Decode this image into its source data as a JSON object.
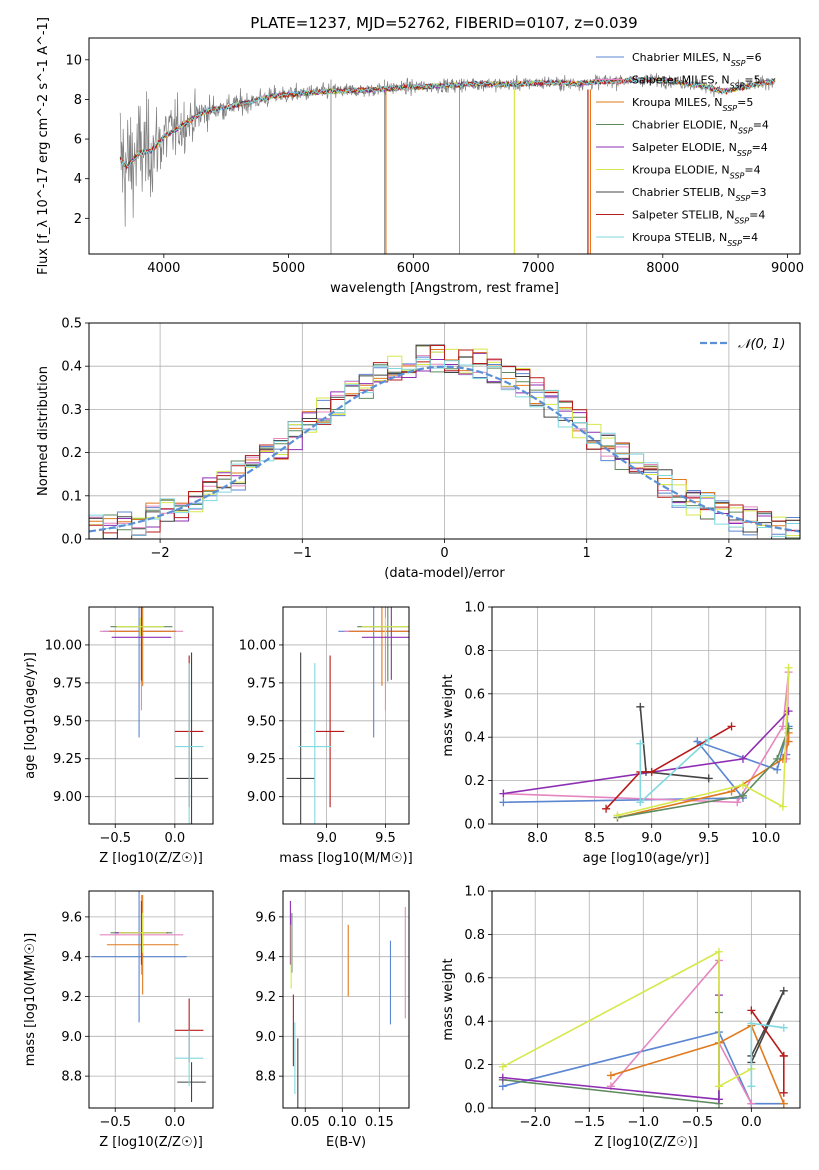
{
  "palette": {
    "Chabrier MILES": "#5b86d1",
    "Salpeter MILES": "#e586c0",
    "Kroupa MILES": "#e07a1d",
    "Chabrier ELODIE": "#5f8a5f",
    "Salpeter ELODIE": "#8e2fb3",
    "Kroupa ELODIE": "#d6e84a",
    "Chabrier STELIB": "#444444",
    "Salpeter STELIB": "#b81b1b",
    "Kroupa STELIB": "#80d8e0",
    "data": "#808080",
    "normal": "#5b8fd6",
    "grid": "#b0b0b0"
  },
  "chart_data": [
    {
      "id": "spectrum",
      "type": "line",
      "title": "PLATE=1237, MJD=52762, FIBERID=0107, z=0.039",
      "xlabel": "wavelength [Angstrom, rest frame]",
      "ylabel": "Flux [f_λ 10^-17 erg cm^-2 s^-1 A^-1]",
      "xlim": [
        3400,
        9100
      ],
      "ylim": [
        0.2,
        11.1
      ],
      "xticks": [
        4000,
        5000,
        6000,
        7000,
        8000,
        9000
      ],
      "yticks": [
        2,
        4,
        6,
        8,
        10
      ],
      "grid": false,
      "legend_position": "top-right",
      "legend": [
        {
          "name": "Chabrier MILES",
          "nssp": "6"
        },
        {
          "name": "Salpeter MILES",
          "nssp": "5"
        },
        {
          "name": "Kroupa MILES",
          "nssp": "5"
        },
        {
          "name": "Chabrier ELODIE",
          "nssp": "4"
        },
        {
          "name": "Salpeter ELODIE",
          "nssp": "4"
        },
        {
          "name": "Kroupa ELODIE",
          "nssp": "4"
        },
        {
          "name": "Chabrier STELIB",
          "nssp": "3"
        },
        {
          "name": "Salpeter STELIB",
          "nssp": "4"
        },
        {
          "name": "Kroupa STELIB",
          "nssp": "4"
        }
      ],
      "data_curve": {
        "x": [
          3650,
          3700,
          3800,
          3900,
          4000,
          4100,
          4200,
          4300,
          4400,
          4500,
          4700,
          4900,
          5100,
          5300,
          5500,
          5700,
          5900,
          6100,
          6300,
          6500,
          6700,
          6900,
          7100,
          7300,
          7500,
          7700,
          7900,
          8100,
          8300,
          8500,
          8700,
          8900
        ],
        "y": [
          5.0,
          4.6,
          5.3,
          5.4,
          6.1,
          6.5,
          6.9,
          7.3,
          7.5,
          7.6,
          7.9,
          8.2,
          8.3,
          8.4,
          8.45,
          8.5,
          8.6,
          8.65,
          8.7,
          8.8,
          8.75,
          8.8,
          8.85,
          8.8,
          8.9,
          8.95,
          9.0,
          8.9,
          8.7,
          8.4,
          8.7,
          8.95
        ]
      },
      "noise_amplitude": [
        4.5,
        4.0,
        3.6,
        3.0,
        2.4,
        1.9,
        1.5,
        1.2,
        0.9,
        0.8,
        0.7,
        0.6,
        0.55,
        0.5,
        0.5,
        0.45,
        0.45,
        0.45,
        0.45,
        0.45,
        0.45,
        0.45,
        0.45,
        0.45,
        0.45,
        0.4,
        0.4,
        0.4,
        0.4,
        0.4,
        0.4,
        0.4
      ]
    },
    {
      "id": "residuals",
      "type": "histogram",
      "xlabel": "(data-model)/error",
      "ylabel": "Normed distribution",
      "xlim": [
        -2.5,
        2.5
      ],
      "ylim": [
        0,
        0.5
      ],
      "xticks": [
        -2,
        -1,
        0,
        1,
        2
      ],
      "yticks": [
        0.0,
        0.1,
        0.2,
        0.3,
        0.4,
        0.5
      ],
      "grid": true,
      "legend_position": "top-right",
      "legend": [
        {
          "name": "𝒩(0, 1)"
        }
      ],
      "bin_width": 0.1
    },
    {
      "id": "age-vs-Z",
      "type": "errorbar",
      "xlabel": "Z [log10(Z/Z☉)]",
      "ylabel": "age [log10(age/yr)]",
      "xlim": [
        -0.72,
        0.32
      ],
      "ylim": [
        8.82,
        10.25
      ],
      "xticks": [
        -0.5,
        0.0
      ],
      "yticks": [
        9.0,
        9.25,
        9.5,
        9.75,
        10.0
      ],
      "points": [
        {
          "model": "Chabrier MILES",
          "x": -0.3,
          "xerr": 0.3,
          "y": 10.09,
          "yerr": 0.7
        },
        {
          "model": "Salpeter MILES",
          "x": -0.28,
          "xerr": 0.35,
          "y": 10.09,
          "yerr": 0.52
        },
        {
          "model": "Kroupa MILES",
          "x": -0.27,
          "xerr": 0.28,
          "y": 10.09,
          "yerr": 0.36
        },
        {
          "model": "Chabrier ELODIE",
          "x": -0.28,
          "xerr": 0.26,
          "y": 10.12,
          "yerr": 0.36
        },
        {
          "model": "Salpeter ELODIE",
          "x": -0.28,
          "xerr": 0.25,
          "y": 10.05,
          "yerr": 0.28
        },
        {
          "model": "Kroupa ELODIE",
          "x": -0.29,
          "xerr": 0.2,
          "y": 10.12,
          "yerr": 0.06
        },
        {
          "model": "Chabrier STELIB",
          "x": 0.14,
          "xerr": 0.14,
          "y": 9.12,
          "yerr": 0.83
        },
        {
          "model": "Salpeter STELIB",
          "x": 0.12,
          "xerr": 0.12,
          "y": 9.43,
          "yerr": 0.5
        },
        {
          "model": "Kroupa STELIB",
          "x": 0.12,
          "xerr": 0.12,
          "y": 9.33,
          "yerr": 0.55
        }
      ]
    },
    {
      "id": "age-vs-mass",
      "type": "errorbar",
      "xlabel": "mass [log10(M/M☉)]",
      "ylabel": "",
      "xlim": [
        8.63,
        9.7
      ],
      "ylim": [
        8.82,
        10.25
      ],
      "xticks": [
        9.0,
        9.5
      ],
      "yticks": [
        9.0,
        9.25,
        9.5,
        9.75,
        10.0
      ],
      "points": [
        {
          "model": "Chabrier MILES",
          "x": 9.4,
          "xerr": 0.3,
          "y": 10.09,
          "yerr": 0.7
        },
        {
          "model": "Salpeter MILES",
          "x": 9.5,
          "xerr": 0.35,
          "y": 10.09,
          "yerr": 0.52
        },
        {
          "model": "Kroupa MILES",
          "x": 9.47,
          "xerr": 0.28,
          "y": 10.09,
          "yerr": 0.36
        },
        {
          "model": "Chabrier ELODIE",
          "x": 9.52,
          "xerr": 0.26,
          "y": 10.12,
          "yerr": 0.36
        },
        {
          "model": "Salpeter ELODIE",
          "x": 9.55,
          "xerr": 0.25,
          "y": 10.05,
          "yerr": 0.28
        },
        {
          "model": "Kroupa ELODIE",
          "x": 9.5,
          "xerr": 0.2,
          "y": 10.12,
          "yerr": 0.06
        },
        {
          "model": "Chabrier STELIB",
          "x": 8.78,
          "xerr": 0.12,
          "y": 9.12,
          "yerr": 0.83
        },
        {
          "model": "Salpeter STELIB",
          "x": 9.03,
          "xerr": 0.12,
          "y": 9.43,
          "yerr": 0.5
        },
        {
          "model": "Kroupa STELIB",
          "x": 8.9,
          "xerr": 0.14,
          "y": 9.33,
          "yerr": 0.55
        }
      ]
    },
    {
      "id": "weight-vs-age",
      "type": "line",
      "xlabel": "age [log10(age/yr)]",
      "ylabel": "mass weight",
      "xlim": [
        7.6,
        10.3
      ],
      "ylim": [
        0,
        1.0
      ],
      "xticks": [
        8.0,
        8.5,
        9.0,
        9.5,
        10.0
      ],
      "yticks": [
        0.0,
        0.2,
        0.4,
        0.6,
        0.8,
        1.0
      ],
      "grid": true,
      "series": [
        {
          "model": "Chabrier MILES",
          "x": [
            7.7,
            9.8,
            9.4,
            10.1,
            10.2,
            10.18
          ],
          "y": [
            0.1,
            0.12,
            0.38,
            0.25,
            0.45,
            0.32
          ]
        },
        {
          "model": "Salpeter MILES",
          "x": [
            7.7,
            9.75,
            10.15,
            10.2,
            10.18
          ],
          "y": [
            0.14,
            0.1,
            0.45,
            0.7,
            0.3
          ]
        },
        {
          "model": "Kroupa MILES",
          "x": [
            8.7,
            9.7,
            10.15,
            10.2,
            10.2
          ],
          "y": [
            0.03,
            0.15,
            0.3,
            0.38,
            0.42
          ]
        },
        {
          "model": "Chabrier ELODIE",
          "x": [
            8.7,
            9.8,
            10.1,
            10.2
          ],
          "y": [
            0.03,
            0.13,
            0.3,
            0.44
          ]
        },
        {
          "model": "Salpeter ELODIE",
          "x": [
            7.7,
            9.8,
            10.2
          ],
          "y": [
            0.14,
            0.3,
            0.52
          ]
        },
        {
          "model": "Kroupa ELODIE",
          "x": [
            8.7,
            9.8,
            10.15,
            10.2
          ],
          "y": [
            0.04,
            0.18,
            0.08,
            0.72
          ]
        },
        {
          "model": "Chabrier STELIB",
          "x": [
            8.9,
            8.95,
            9.5
          ],
          "y": [
            0.54,
            0.24,
            0.21
          ]
        },
        {
          "model": "Salpeter STELIB",
          "x": [
            8.6,
            8.9,
            9.0,
            9.7
          ],
          "y": [
            0.07,
            0.24,
            0.24,
            0.45
          ]
        },
        {
          "model": "Kroupa STELIB",
          "x": [
            8.9,
            8.9,
            9.5
          ],
          "y": [
            0.37,
            0.1,
            0.39
          ]
        }
      ]
    },
    {
      "id": "mass-vs-Z",
      "type": "errorbar",
      "xlabel": "Z [log10(Z/Z☉)]",
      "ylabel": "mass [log10(M/M☉)]",
      "xlim": [
        -0.72,
        0.32
      ],
      "ylim": [
        8.64,
        9.73
      ],
      "xticks": [
        -0.5,
        0.0
      ],
      "yticks": [
        8.8,
        9.0,
        9.2,
        9.4,
        9.6
      ],
      "points": [
        {
          "model": "Chabrier MILES",
          "x": -0.3,
          "xerr": 0.4,
          "y": 9.4,
          "yerr": 0.33
        },
        {
          "model": "Salpeter MILES",
          "x": -0.28,
          "xerr": 0.35,
          "y": 9.51,
          "yerr": 0.2
        },
        {
          "model": "Kroupa MILES",
          "x": -0.27,
          "xerr": 0.3,
          "y": 9.46,
          "yerr": 0.25
        },
        {
          "model": "Chabrier ELODIE",
          "x": -0.28,
          "xerr": 0.26,
          "y": 9.52,
          "yerr": 0.14
        },
        {
          "model": "Salpeter ELODIE",
          "x": -0.28,
          "xerr": 0.22,
          "y": 9.52,
          "yerr": 0.16
        },
        {
          "model": "Kroupa ELODIE",
          "x": -0.27,
          "xerr": 0.2,
          "y": 9.52,
          "yerr": 0.1
        },
        {
          "model": "Chabrier STELIB",
          "x": 0.14,
          "xerr": 0.12,
          "y": 8.77,
          "yerr": 0.1
        },
        {
          "model": "Salpeter STELIB",
          "x": 0.12,
          "xerr": 0.12,
          "y": 9.03,
          "yerr": 0.16
        },
        {
          "model": "Kroupa STELIB",
          "x": 0.12,
          "xerr": 0.12,
          "y": 8.89,
          "yerr": 0.14
        }
      ]
    },
    {
      "id": "mass-vs-EBV",
      "type": "errorbar",
      "xlabel": "E(B-V)",
      "ylabel": "",
      "xlim": [
        0.02,
        0.19
      ],
      "ylim": [
        8.64,
        9.73
      ],
      "xticks": [
        0.05,
        0.1,
        0.15
      ],
      "yticks": [
        8.8,
        9.0,
        9.2,
        9.4,
        9.6
      ],
      "points": [
        {
          "model": "Chabrier MILES",
          "x": 0.165,
          "xerr": 0,
          "y": 9.27,
          "yerr": 0.21
        },
        {
          "model": "Salpeter MILES",
          "x": 0.185,
          "xerr": 0,
          "y": 9.37,
          "yerr": 0.28
        },
        {
          "model": "Kroupa MILES",
          "x": 0.108,
          "xerr": 0,
          "y": 9.38,
          "yerr": 0.18
        },
        {
          "model": "Chabrier ELODIE",
          "x": 0.032,
          "xerr": 0,
          "y": 9.47,
          "yerr": 0.15
        },
        {
          "model": "Salpeter ELODIE",
          "x": 0.03,
          "xerr": 0,
          "y": 9.52,
          "yerr": 0.16
        },
        {
          "model": "Kroupa ELODIE",
          "x": 0.031,
          "xerr": 0,
          "y": 9.4,
          "yerr": 0.16
        },
        {
          "model": "Chabrier STELIB",
          "x": 0.04,
          "xerr": 0,
          "y": 8.77,
          "yerr": 0.22
        },
        {
          "model": "Salpeter STELIB",
          "x": 0.034,
          "xerr": 0,
          "y": 9.03,
          "yerr": 0.18
        },
        {
          "model": "Kroupa STELIB",
          "x": 0.036,
          "xerr": 0,
          "y": 8.89,
          "yerr": 0.18
        }
      ]
    },
    {
      "id": "weight-vs-Z",
      "type": "line",
      "xlabel": "Z [log10(Z/Z☉)]",
      "ylabel": "mass weight",
      "xlim": [
        -2.4,
        0.45
      ],
      "ylim": [
        0,
        1.0
      ],
      "xticks": [
        -2.0,
        -1.5,
        -1.0,
        -0.5,
        0.0
      ],
      "yticks": [
        0.0,
        0.2,
        0.4,
        0.6,
        0.8,
        1.0
      ],
      "grid": true,
      "series": [
        {
          "model": "Chabrier MILES",
          "x": [
            -2.3,
            -0.3,
            0.0,
            0.3
          ],
          "y": [
            0.1,
            0.35,
            0.02,
            0.02
          ]
        },
        {
          "model": "Salpeter MILES",
          "x": [
            -1.3,
            -0.3,
            -0.3,
            0.0
          ],
          "y": [
            0.1,
            0.68,
            0.3,
            0.02
          ]
        },
        {
          "model": "Kroupa MILES",
          "x": [
            -1.3,
            -0.3,
            0.0,
            0.3
          ],
          "y": [
            0.15,
            0.3,
            0.38,
            0.02
          ]
        },
        {
          "model": "Chabrier ELODIE",
          "x": [
            -2.3,
            -0.3,
            -0.3
          ],
          "y": [
            0.13,
            0.02,
            0.44
          ]
        },
        {
          "model": "Salpeter ELODIE",
          "x": [
            -2.3,
            -0.3,
            -0.3
          ],
          "y": [
            0.14,
            0.04,
            0.52
          ]
        },
        {
          "model": "Kroupa ELODIE",
          "x": [
            -2.3,
            -0.3,
            -0.3,
            0.0
          ],
          "y": [
            0.19,
            0.72,
            0.1,
            0.18
          ]
        },
        {
          "model": "Chabrier STELIB",
          "x": [
            0.0,
            0.3,
            0.0
          ],
          "y": [
            0.21,
            0.54,
            0.24
          ]
        },
        {
          "model": "Salpeter STELIB",
          "x": [
            0.3,
            0.3,
            0.0,
            0.3
          ],
          "y": [
            0.07,
            0.24,
            0.45,
            0.24
          ]
        },
        {
          "model": "Kroupa STELIB",
          "x": [
            0.0,
            0.0,
            0.3
          ],
          "y": [
            0.1,
            0.39,
            0.37
          ]
        }
      ]
    }
  ]
}
